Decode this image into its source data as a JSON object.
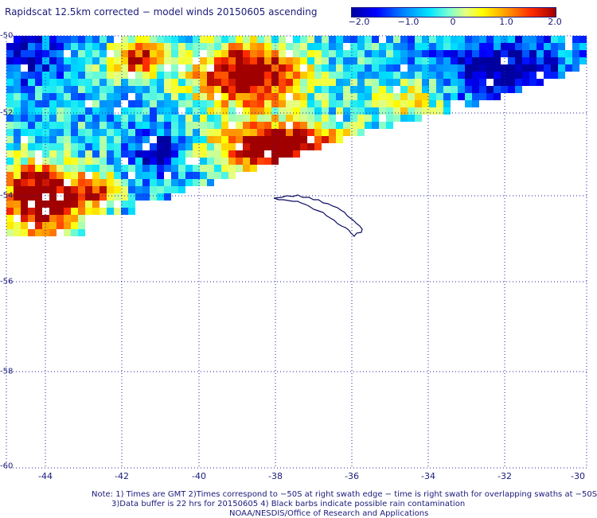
{
  "title": "Rapidscat 12.5km corrected − model winds 20150605 ascending",
  "colorbar": {
    "tick_labels": [
      "−2.0",
      "−1.0",
      "0",
      "1.0",
      "2.0"
    ],
    "min": -2.0,
    "max": 2.0
  },
  "map": {
    "lat_range": [
      -60,
      -50
    ],
    "lon_range": [
      -45,
      -30
    ],
    "lat_labels": [
      "-50",
      "-52",
      "-54",
      "-56",
      "-58",
      "-60"
    ],
    "lon_labels": [
      "-44",
      "-42",
      "-40",
      "-38",
      "-36",
      "-34",
      "-32",
      "-30"
    ],
    "grid": "dotted",
    "landmass": "South Georgia island outline"
  },
  "notes": {
    "line1": "Note: 1) Times are GMT 2)Times correspond to −50S at right swath edge − time is right swath for overlapping swaths at −50S",
    "line2": "3)Data buffer is 22 hrs for 20150605 4) Black barbs indicate possible rain contamination",
    "line3": "NOAA/NESDIS/Office of Research and Applications"
  },
  "colors": {
    "text": "#1a1a7a",
    "grid": "#2020a0",
    "coast": "#0a0a60"
  }
}
